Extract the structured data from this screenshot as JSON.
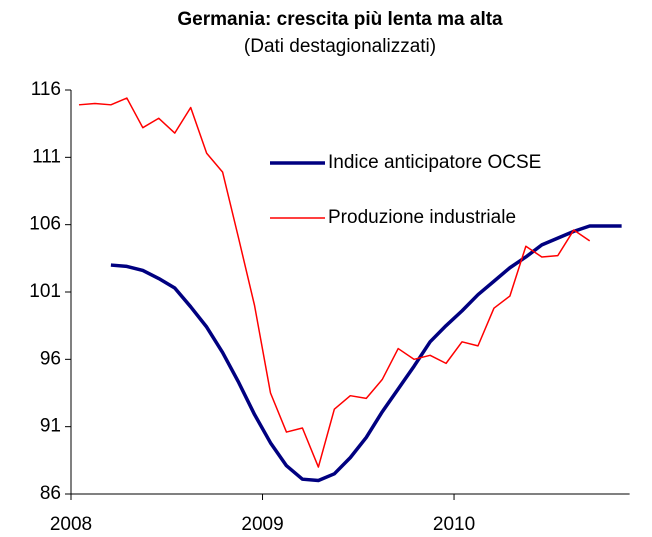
{
  "chart_data": {
    "type": "line",
    "title": "Germania: crescita più lenta ma alta",
    "subtitle": "(Dati destagionalizzati)",
    "categories": [
      "2008",
      null,
      null,
      null,
      null,
      null,
      null,
      null,
      null,
      null,
      null,
      null,
      "2009",
      null,
      null,
      null,
      null,
      null,
      null,
      null,
      null,
      null,
      null,
      null,
      "2010",
      null,
      null,
      null,
      null,
      null,
      null,
      null,
      null,
      null,
      null
    ],
    "series": [
      {
        "name": "Indice anticipatore OCSE",
        "color": "#000080",
        "width": 3.5,
        "values": [
          null,
          null,
          103.0,
          102.9,
          102.6,
          102.0,
          101.3,
          99.9,
          98.4,
          96.5,
          94.3,
          91.9,
          89.8,
          88.1,
          87.1,
          87.0,
          87.5,
          88.7,
          90.2,
          92.1,
          93.8,
          95.5,
          97.3,
          98.5,
          99.6,
          100.8,
          101.8,
          102.8,
          103.6,
          104.5,
          105.0,
          105.5,
          105.9,
          105.9,
          105.9
        ]
      },
      {
        "name": "Produzione industriale",
        "color": "#ff0000",
        "width": 1.5,
        "values": [
          114.9,
          115.0,
          114.9,
          115.4,
          113.2,
          113.9,
          112.8,
          114.7,
          111.3,
          109.9,
          105.0,
          100.0,
          93.5,
          90.6,
          90.9,
          88.0,
          92.3,
          93.3,
          93.1,
          94.5,
          96.8,
          96.0,
          96.3,
          95.7,
          97.3,
          97.0,
          99.8,
          100.7,
          104.4,
          103.6,
          103.7,
          105.6,
          104.8,
          null,
          null
        ]
      }
    ],
    "ylim": [
      86,
      116
    ],
    "yticks": [
      86,
      91,
      96,
      101,
      106,
      111,
      116
    ],
    "grid": false
  }
}
